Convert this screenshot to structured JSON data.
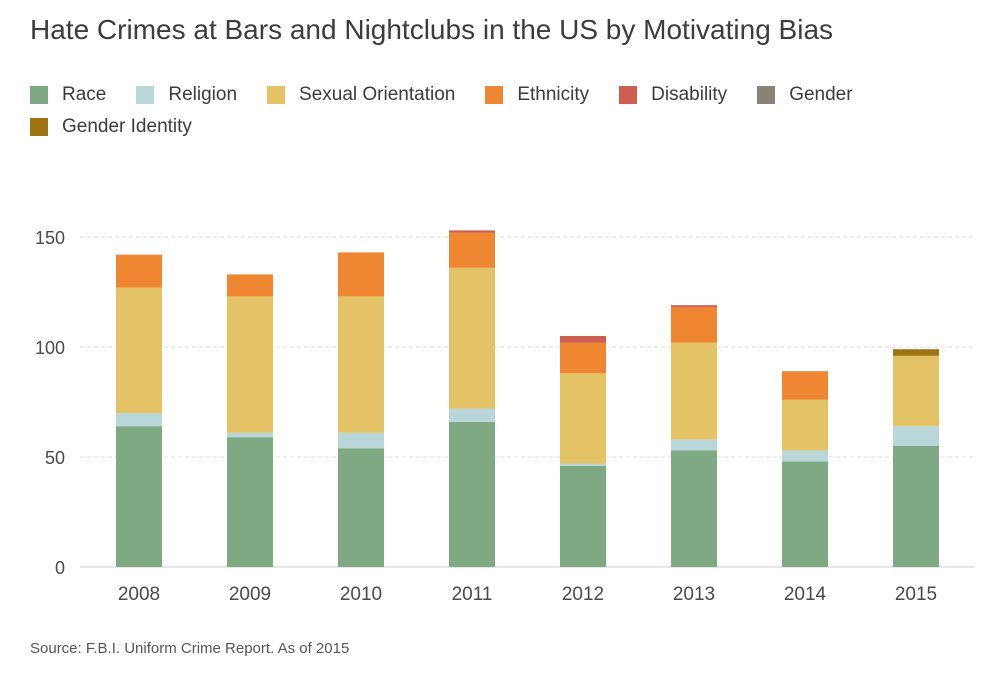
{
  "title": "Hate Crimes at Bars and Nightclubs in the US by Motivating Bias",
  "source": "Source: F.B.I. Uniform Crime Report. As of 2015",
  "chart_data": {
    "type": "bar",
    "stacked": true,
    "title": "Hate Crimes at Bars and Nightclubs in the US by Motivating Bias",
    "xlabel": "",
    "ylabel": "",
    "ylim": [
      0,
      160
    ],
    "yticks": [
      0,
      50,
      100,
      150
    ],
    "grid": true,
    "legend_position": "top-left",
    "categories": [
      "2008",
      "2009",
      "2010",
      "2011",
      "2012",
      "2013",
      "2014",
      "2015"
    ],
    "series": [
      {
        "name": "Race",
        "color": "#7fa982",
        "values": [
          64,
          59,
          54,
          66,
          46,
          53,
          48,
          55
        ]
      },
      {
        "name": "Religion",
        "color": "#b9d6d8",
        "values": [
          6,
          2,
          7,
          6,
          1,
          5,
          5,
          9
        ]
      },
      {
        "name": "Sexual Orientation",
        "color": "#e3c365",
        "values": [
          57,
          62,
          62,
          64,
          41,
          44,
          23,
          32
        ]
      },
      {
        "name": "Ethnicity",
        "color": "#ef8732",
        "values": [
          15,
          10,
          20,
          16,
          14,
          16,
          13,
          0
        ]
      },
      {
        "name": "Disability",
        "color": "#cf5d50",
        "values": [
          0,
          0,
          0,
          1,
          3,
          1,
          0,
          0
        ]
      },
      {
        "name": "Gender",
        "color": "#8a8272",
        "values": [
          0,
          0,
          0,
          0,
          0,
          0,
          0,
          0
        ]
      },
      {
        "name": "Gender Identity",
        "color": "#9e7412",
        "values": [
          0,
          0,
          0,
          0,
          0,
          0,
          0,
          3
        ]
      }
    ]
  }
}
